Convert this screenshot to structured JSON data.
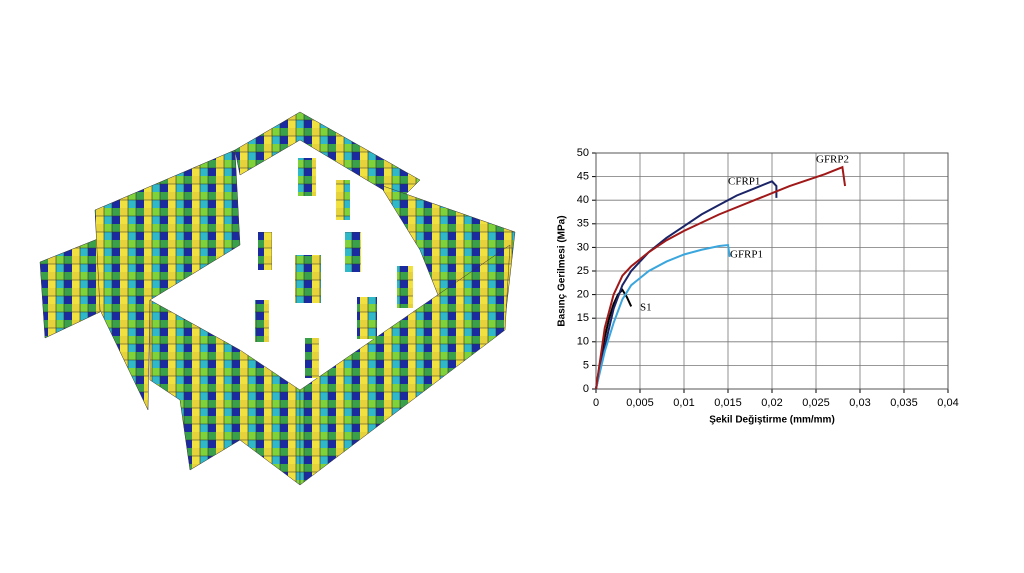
{
  "chart_data": {
    "type": "line",
    "xlabel": "Şekil Değiştirme (mm/mm)",
    "ylabel": "Basınç Gerilmesi (MPa)",
    "xlim": [
      0,
      0.04
    ],
    "xticks": [
      0,
      {
        "value": 0.005,
        "label": "0,005"
      },
      {
        "value": 0.01,
        "label": "0,01"
      },
      {
        "value": 0.015,
        "label": "0,015"
      },
      {
        "value": 0.02,
        "label": "0,02"
      },
      {
        "value": 0.025,
        "label": "0,025"
      },
      {
        "value": 0.03,
        "label": "0,03"
      },
      {
        "value": 0.035,
        "label": "0,035"
      },
      {
        "value": 0.04,
        "label": "0,04"
      }
    ],
    "ylim": [
      0,
      50
    ],
    "yticks": [
      0,
      5,
      10,
      15,
      20,
      25,
      30,
      35,
      40,
      45,
      50
    ],
    "grid": true,
    "series": [
      {
        "name": "S1",
        "color": "#000000",
        "x": [
          0,
          0.0005,
          0.001,
          0.0015,
          0.002,
          0.0025,
          0.003,
          0.0035,
          0.004
        ],
        "values": [
          0,
          6,
          11,
          15,
          18,
          20,
          21,
          19.5,
          17.5
        ]
      },
      {
        "name": "CFRP1",
        "color": "#1a2466",
        "x": [
          0,
          0.001,
          0.002,
          0.003,
          0.004,
          0.006,
          0.008,
          0.01,
          0.012,
          0.014,
          0.016,
          0.018,
          0.02,
          0.0205,
          0.0205
        ],
        "values": [
          0,
          9,
          17,
          22,
          25,
          29,
          32,
          34.5,
          37,
          39,
          41,
          42.5,
          44,
          43,
          40.5
        ]
      },
      {
        "name": "GFRP1",
        "color": "#3aa6dd",
        "x": [
          0,
          0.001,
          0.002,
          0.003,
          0.004,
          0.006,
          0.008,
          0.01,
          0.012,
          0.014,
          0.015,
          0.0152
        ],
        "values": [
          0,
          8,
          14,
          19,
          22,
          25,
          27,
          28.5,
          29.5,
          30.3,
          30.5,
          28
        ]
      },
      {
        "name": "GFRP2",
        "color": "#a01818",
        "x": [
          0,
          0.001,
          0.002,
          0.003,
          0.004,
          0.006,
          0.008,
          0.01,
          0.014,
          0.018,
          0.022,
          0.026,
          0.028,
          0.0283
        ],
        "values": [
          0,
          13,
          20,
          24,
          26,
          29,
          31.5,
          33.5,
          37,
          40,
          43,
          45.5,
          47,
          43
        ]
      }
    ]
  }
}
